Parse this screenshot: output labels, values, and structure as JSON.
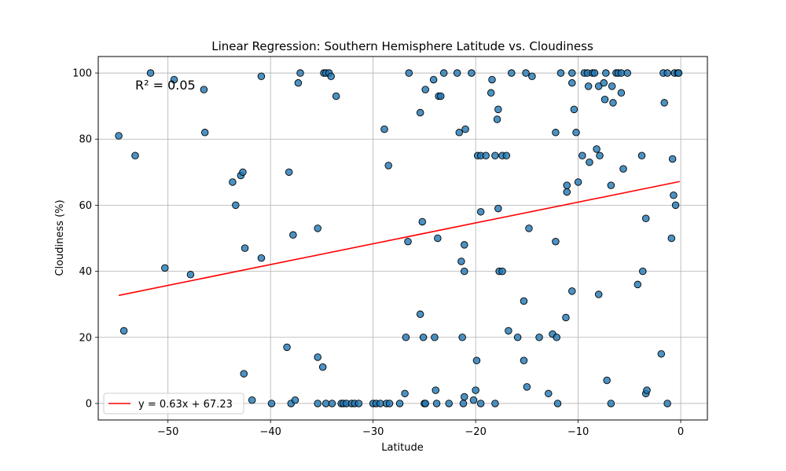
{
  "chart_data": {
    "type": "scatter",
    "title": "Linear Regression: Southern Hemisphere Latitude vs. Cloudiness",
    "xlabel": "Latitude",
    "ylabel": "Cloudiness (%)",
    "xlim": [
      -56.8,
      2.6
    ],
    "ylim": [
      -5,
      105
    ],
    "xticks": [
      -50,
      -40,
      -30,
      -20,
      -10,
      0
    ],
    "xtick_labels": [
      "−50",
      "−40",
      "−30",
      "−20",
      "−10",
      "0"
    ],
    "yticks": [
      0,
      20,
      40,
      60,
      80,
      100
    ],
    "ytick_labels": [
      "0",
      "20",
      "40",
      "60",
      "80",
      "100"
    ],
    "grid": true,
    "annotation": "R² = 0.05",
    "annotation_color": "#ff0000",
    "legend_position": "lower-left",
    "legend_label": "y = 0.63x + 67.23",
    "regression": {
      "slope": 0.63,
      "intercept": 67.23,
      "x_range": [
        -54.8,
        -0.1
      ],
      "color": "#ff0000"
    },
    "point_color": "#1f77b4",
    "points": [
      [
        -54.8,
        81
      ],
      [
        -54.3,
        22
      ],
      [
        -53.2,
        75
      ],
      [
        -51.7,
        100
      ],
      [
        -50.3,
        41
      ],
      [
        -49.4,
        98
      ],
      [
        -47.8,
        39
      ],
      [
        -46.5,
        95
      ],
      [
        -46.4,
        82
      ],
      [
        -43.7,
        67
      ],
      [
        -43.4,
        60
      ],
      [
        -42.9,
        69
      ],
      [
        -42.7,
        70
      ],
      [
        -42.5,
        47
      ],
      [
        -42.6,
        9
      ],
      [
        -41.8,
        1
      ],
      [
        -40.9,
        99
      ],
      [
        -40.9,
        44
      ],
      [
        -39.9,
        0
      ],
      [
        -38.4,
        17
      ],
      [
        -38.2,
        70
      ],
      [
        -38.0,
        0
      ],
      [
        -37.8,
        51
      ],
      [
        -37.6,
        1
      ],
      [
        -37.3,
        97
      ],
      [
        -37.1,
        100
      ],
      [
        -35.4,
        53
      ],
      [
        -35.4,
        14
      ],
      [
        -35.4,
        0
      ],
      [
        -34.9,
        11
      ],
      [
        -34.8,
        100
      ],
      [
        -34.6,
        100
      ],
      [
        -34.6,
        0
      ],
      [
        -34.3,
        100
      ],
      [
        -34.1,
        99
      ],
      [
        -34.0,
        0
      ],
      [
        -33.6,
        93
      ],
      [
        -33.1,
        0
      ],
      [
        -32.9,
        0
      ],
      [
        -32.6,
        0
      ],
      [
        -32.1,
        0
      ],
      [
        -31.8,
        0
      ],
      [
        -31.4,
        0
      ],
      [
        -30.0,
        0
      ],
      [
        -29.7,
        0
      ],
      [
        -29.3,
        0
      ],
      [
        -28.9,
        83
      ],
      [
        -28.7,
        0
      ],
      [
        -28.5,
        72
      ],
      [
        -28.4,
        0
      ],
      [
        -27.4,
        0
      ],
      [
        -26.9,
        3
      ],
      [
        -26.8,
        20
      ],
      [
        -26.6,
        49
      ],
      [
        -26.5,
        100
      ],
      [
        -25.4,
        88
      ],
      [
        -25.4,
        27
      ],
      [
        -25.2,
        55
      ],
      [
        -25.0,
        0
      ],
      [
        -25.1,
        20
      ],
      [
        -24.9,
        95
      ],
      [
        -24.9,
        0
      ],
      [
        -24.1,
        98
      ],
      [
        -24.0,
        20
      ],
      [
        -23.9,
        4
      ],
      [
        -23.8,
        0
      ],
      [
        -23.7,
        50
      ],
      [
        -23.6,
        93
      ],
      [
        -23.4,
        93
      ],
      [
        -23.1,
        100
      ],
      [
        -22.6,
        0
      ],
      [
        -21.8,
        100
      ],
      [
        -21.6,
        82
      ],
      [
        -21.4,
        43
      ],
      [
        -21.3,
        20
      ],
      [
        -21.2,
        0
      ],
      [
        -21.1,
        40
      ],
      [
        -21.0,
        83
      ],
      [
        -21.1,
        48
      ],
      [
        -21.1,
        2
      ],
      [
        -20.4,
        100
      ],
      [
        -20.2,
        1
      ],
      [
        -20.0,
        4
      ],
      [
        -19.9,
        13
      ],
      [
        -19.8,
        75
      ],
      [
        -19.5,
        75
      ],
      [
        -19.5,
        58
      ],
      [
        -19.5,
        0
      ],
      [
        -19.0,
        75
      ],
      [
        -18.5,
        94
      ],
      [
        -18.4,
        98
      ],
      [
        -18.1,
        75
      ],
      [
        -18.1,
        0
      ],
      [
        -17.9,
        86
      ],
      [
        -17.8,
        89
      ],
      [
        -17.8,
        59
      ],
      [
        -17.7,
        40
      ],
      [
        -17.4,
        40
      ],
      [
        -17.4,
        75
      ],
      [
        -17.0,
        75
      ],
      [
        -16.8,
        22
      ],
      [
        -16.5,
        100
      ],
      [
        -15.9,
        20
      ],
      [
        -15.3,
        31
      ],
      [
        -15.3,
        13
      ],
      [
        -15.1,
        100
      ],
      [
        -15.0,
        5
      ],
      [
        -14.8,
        53
      ],
      [
        -14.5,
        99
      ],
      [
        -13.8,
        20
      ],
      [
        -12.9,
        3
      ],
      [
        -12.5,
        21
      ],
      [
        -12.2,
        82
      ],
      [
        -12.2,
        49
      ],
      [
        -12.1,
        20
      ],
      [
        -12.0,
        0
      ],
      [
        -11.7,
        100
      ],
      [
        -11.2,
        26
      ],
      [
        -11.1,
        64
      ],
      [
        -11.1,
        66
      ],
      [
        -10.6,
        34
      ],
      [
        -10.6,
        100
      ],
      [
        -10.6,
        97
      ],
      [
        -10.4,
        89
      ],
      [
        -10.2,
        82
      ],
      [
        -10.0,
        67
      ],
      [
        -9.6,
        75
      ],
      [
        -9.4,
        100
      ],
      [
        -9.1,
        100
      ],
      [
        -9.0,
        96
      ],
      [
        -8.9,
        73
      ],
      [
        -8.6,
        100
      ],
      [
        -8.4,
        100
      ],
      [
        -8.2,
        77
      ],
      [
        -8.0,
        96
      ],
      [
        -7.9,
        75
      ],
      [
        -8.0,
        33
      ],
      [
        -7.5,
        97
      ],
      [
        -7.4,
        92
      ],
      [
        -7.3,
        100
      ],
      [
        -7.2,
        7
      ],
      [
        -6.8,
        66
      ],
      [
        -6.8,
        0
      ],
      [
        -6.7,
        96
      ],
      [
        -6.6,
        91
      ],
      [
        -6.3,
        100
      ],
      [
        -6.1,
        100
      ],
      [
        -5.8,
        94
      ],
      [
        -5.8,
        100
      ],
      [
        -5.6,
        71
      ],
      [
        -5.2,
        100
      ],
      [
        -4.2,
        36
      ],
      [
        -3.8,
        75
      ],
      [
        -3.7,
        40
      ],
      [
        -3.4,
        56
      ],
      [
        -3.4,
        3
      ],
      [
        -3.3,
        4
      ],
      [
        -1.9,
        15
      ],
      [
        -1.7,
        100
      ],
      [
        -1.6,
        91
      ],
      [
        -1.3,
        100
      ],
      [
        -1.3,
        0
      ],
      [
        -0.9,
        50
      ],
      [
        -0.8,
        74
      ],
      [
        -0.7,
        63
      ],
      [
        -0.6,
        100
      ],
      [
        -0.5,
        60
      ],
      [
        -0.3,
        100
      ],
      [
        -0.2,
        100
      ]
    ]
  }
}
